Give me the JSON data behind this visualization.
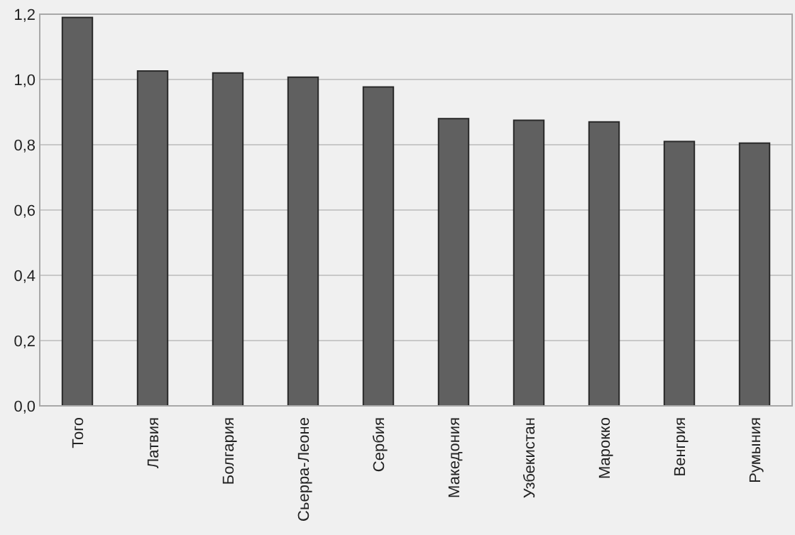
{
  "chart_data": {
    "type": "bar",
    "categories": [
      "Того",
      "Латвия",
      "Болгария",
      "Сьерра-Леоне",
      "Сербия",
      "Македония",
      "Узбекистан",
      "Марокко",
      "Венгрия",
      "Румыния"
    ],
    "values": [
      1.19,
      1.026,
      1.02,
      1.007,
      0.977,
      0.88,
      0.875,
      0.87,
      0.81,
      0.805
    ],
    "color": "#606060",
    "ylim": [
      0,
      1.2
    ],
    "yticks": [
      {
        "value": 0,
        "label": "0,0"
      },
      {
        "value": 0.2,
        "label": "0,2"
      },
      {
        "value": 0.4,
        "label": "0,4"
      },
      {
        "value": 0.6,
        "label": "0,6"
      },
      {
        "value": 0.8,
        "label": "0,8"
      },
      {
        "value": 1,
        "label": "1,0"
      },
      {
        "value": 1.2,
        "label": "1,2"
      }
    ],
    "grid": "y"
  }
}
